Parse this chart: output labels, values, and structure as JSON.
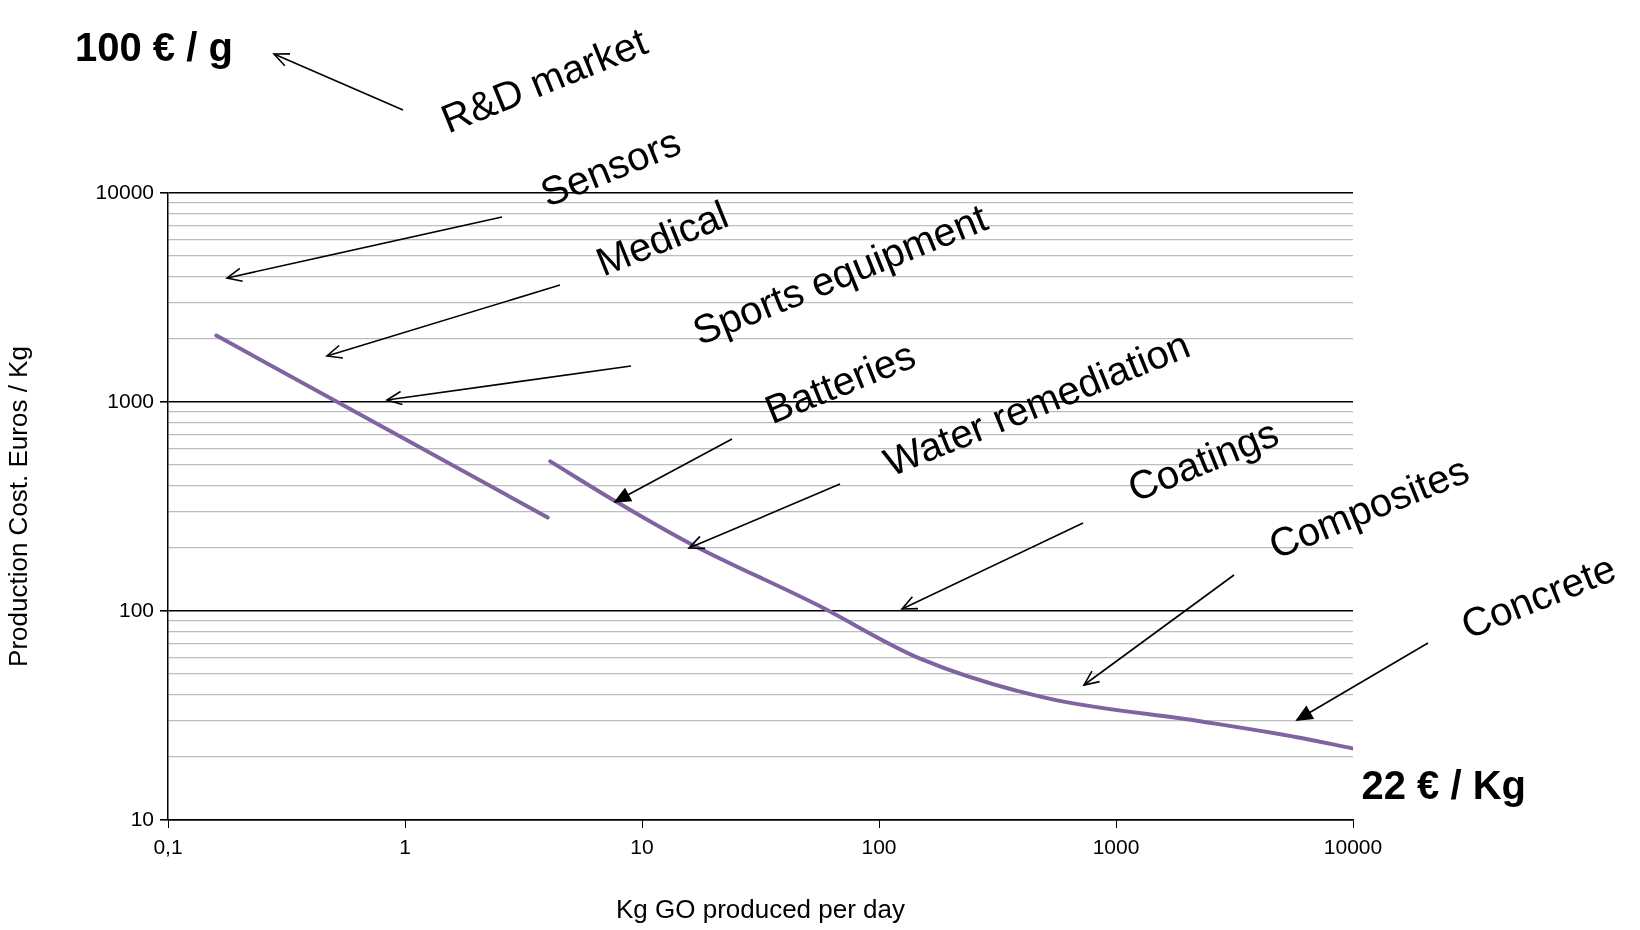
{
  "chart_data": {
    "type": "line",
    "xlabel": "Kg GO produced per day",
    "ylabel": "Production Cost. Euros / Kg",
    "log": "xy",
    "grid": "y",
    "legend": false,
    "marker": "none",
    "line_style": "solid",
    "xlim": [
      0.1,
      10000
    ],
    "xticks": [
      {
        "value": 0.1,
        "label": "0,1"
      },
      1,
      10,
      100,
      1000,
      10000
    ],
    "ylim": [
      10,
      10000
    ],
    "yticks": [
      10,
      {
        "value": 20,
        "label": null
      },
      {
        "value": 30,
        "label": null
      },
      {
        "value": 40,
        "label": null
      },
      {
        "value": 50,
        "label": null
      },
      {
        "value": 60,
        "label": null
      },
      {
        "value": 70,
        "label": null
      },
      {
        "value": 80,
        "label": null
      },
      {
        "value": 90,
        "label": null
      },
      100,
      {
        "value": 200,
        "label": null
      },
      {
        "value": 300,
        "label": null
      },
      {
        "value": 400,
        "label": null
      },
      {
        "value": 500,
        "label": null
      },
      {
        "value": 600,
        "label": null
      },
      {
        "value": 700,
        "label": null
      },
      {
        "value": 800,
        "label": null
      },
      {
        "value": 900,
        "label": null
      },
      1000,
      {
        "value": 2000,
        "label": null
      },
      {
        "value": 3000,
        "label": null
      },
      {
        "value": 4000,
        "label": null
      },
      {
        "value": 5000,
        "label": null
      },
      {
        "value": 6000,
        "label": null
      },
      {
        "value": 7000,
        "label": null
      },
      {
        "value": 8000,
        "label": null
      },
      {
        "value": 9000,
        "label": null
      },
      10000
    ],
    "series": [
      {
        "color": "#8064a2",
        "x": [
          0.16,
          4
        ],
        "values": [
          2080,
          280
        ]
      },
      {
        "color": "#8064a2",
        "x": [
          4.1,
          7.8,
          16,
          54,
          150,
          500,
          2300,
          5800,
          10000
        ],
        "values": [
          520,
          333,
          210,
          108,
          59,
          38.5,
          29.6,
          24.9,
          22
        ]
      }
    ],
    "annotations": [
      "100 € / g",
      "R&D market",
      "Sensors",
      "Medical",
      "Sports equipment",
      {
        "text": "Batteries",
        "x": 7.7,
        "y": 333
      },
      {
        "text": "Water remediation",
        "x": 15.8,
        "y": 200
      },
      "Coatings",
      "Composites",
      "Concrete",
      "22 € / Kg"
    ]
  }
}
